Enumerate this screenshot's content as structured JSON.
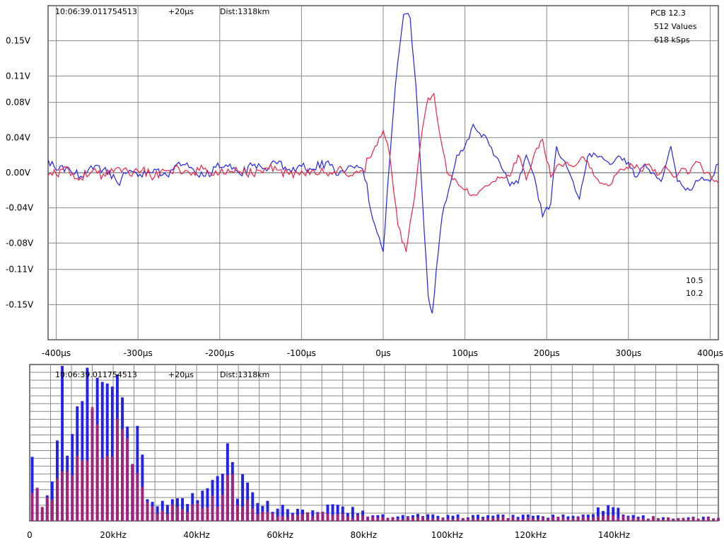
{
  "colors": {
    "blue": "#2222ee",
    "red": "#ee2244",
    "overlap": "#b0246e",
    "grid": "#8a8a8a",
    "zero": "#555555"
  },
  "top": {
    "timestamp": "10:06:39.011754513",
    "offset": "+20µs",
    "distance": "Dist:1318km",
    "station": "PCB 12.3",
    "values": "512 Values",
    "rate": "618 kSps",
    "legend_blue": "10.5",
    "legend_red": "10.2"
  },
  "bottom": {
    "timestamp": "10:06:39.011754513",
    "offset": "+20µs",
    "distance": "Dist:1318km"
  },
  "chart_data": [
    {
      "type": "line",
      "xlim": [
        -410,
        410
      ],
      "ylim": [
        -0.19,
        0.19
      ],
      "x_ticks": [
        -400,
        -300,
        -200,
        -100,
        0,
        100,
        200,
        300,
        400
      ],
      "x_tick_labels": [
        "-400µs",
        "-300µs",
        "-200µs",
        "-100µs",
        "0µs",
        "100µs",
        "200µs",
        "300µs",
        "400µs"
      ],
      "y_ticks": [
        0.15,
        0.11,
        0.08,
        0.04,
        0.0,
        -0.04,
        -0.08,
        -0.11,
        -0.15
      ],
      "y_tick_labels": [
        "0.15V",
        "0.11V",
        "0.08V",
        "0.04V",
        "0.00V",
        "-0.04V",
        "-0.08V",
        "-0.11V",
        "-0.15V"
      ],
      "series": [
        {
          "name": "10.5",
          "color": "blue",
          "x": [
            -410,
            -400,
            -385,
            -370,
            -355,
            -340,
            -325,
            -310,
            -295,
            -280,
            -265,
            -250,
            -235,
            -220,
            -205,
            -190,
            -175,
            -160,
            -145,
            -130,
            -115,
            -100,
            -85,
            -70,
            -55,
            -40,
            -25,
            -10,
            0,
            5,
            15,
            25,
            33,
            40,
            48,
            55,
            60,
            65,
            72,
            80,
            90,
            100,
            110,
            118,
            125,
            135,
            145,
            155,
            165,
            175,
            185,
            195,
            205,
            212,
            220,
            230,
            240,
            250,
            260,
            270,
            280,
            290,
            300,
            310,
            320,
            330,
            340,
            352,
            360,
            370,
            380,
            390,
            400,
            410
          ],
          "y": [
            0.015,
            0.003,
            0.006,
            -0.004,
            0.004,
            0.006,
            -0.012,
            0.003,
            -0.005,
            0.004,
            -0.003,
            0.012,
            0.006,
            -0.004,
            0.006,
            0.007,
            -0.002,
            0.008,
            0.005,
            0.01,
            0.004,
            0.007,
            0.004,
            0.012,
            -0.003,
            0.008,
            0.004,
            -0.06,
            -0.09,
            -0.02,
            0.1,
            0.18,
            0.176,
            0.1,
            -0.03,
            -0.14,
            -0.16,
            -0.11,
            -0.05,
            -0.02,
            0.02,
            0.03,
            0.055,
            0.045,
            0.042,
            0.02,
            0.005,
            -0.015,
            -0.012,
            0.02,
            -0.005,
            -0.05,
            -0.035,
            0.03,
            0.015,
            -0.005,
            -0.03,
            0.018,
            0.02,
            0.015,
            0.01,
            0.018,
            0.012,
            -0.005,
            0.01,
            0.0,
            -0.01,
            0.03,
            -0.01,
            -0.02,
            -0.015,
            -0.005,
            -0.01,
            0.01
          ]
        },
        {
          "name": "10.2",
          "color": "red",
          "x": [
            -410,
            -400,
            -385,
            -370,
            -355,
            -340,
            -325,
            -310,
            -295,
            -280,
            -265,
            -250,
            -235,
            -220,
            -205,
            -190,
            -175,
            -160,
            -145,
            -130,
            -115,
            -100,
            -85,
            -70,
            -55,
            -40,
            -25,
            -10,
            0,
            8,
            18,
            28,
            38,
            48,
            55,
            62,
            70,
            78,
            90,
            100,
            115,
            125,
            135,
            145,
            155,
            165,
            175,
            185,
            195,
            205,
            215,
            225,
            235,
            245,
            255,
            265,
            275,
            285,
            295,
            305,
            315,
            325,
            335,
            345,
            355,
            365,
            375,
            385,
            395,
            405,
            410
          ],
          "y": [
            -0.003,
            -0.002,
            0.004,
            -0.006,
            0.003,
            -0.004,
            0.006,
            -0.003,
            0.003,
            -0.005,
            0.002,
            0.005,
            -0.003,
            0.004,
            0.002,
            0.004,
            0.001,
            -0.002,
            0.005,
            0.003,
            -0.002,
            0.002,
            0.003,
            0.0,
            0.005,
            -0.003,
            0.002,
            0.03,
            0.048,
            0.02,
            -0.06,
            -0.09,
            -0.03,
            0.05,
            0.085,
            0.09,
            0.04,
            0.0,
            -0.01,
            -0.02,
            -0.025,
            -0.015,
            -0.01,
            -0.005,
            -0.004,
            0.02,
            -0.008,
            0.022,
            0.038,
            -0.005,
            0.01,
            0.012,
            0.008,
            0.018,
            0.005,
            -0.012,
            -0.015,
            -0.002,
            0.003,
            0.008,
            0.002,
            0.01,
            -0.003,
            0.008,
            -0.005,
            0.005,
            0.0,
            0.012,
            0.0,
            -0.01,
            -0.012
          ]
        }
      ]
    },
    {
      "type": "bar",
      "xlim": [
        0,
        165
      ],
      "ylim": [
        0,
        1
      ],
      "x_ticks": [
        0,
        20,
        40,
        60,
        80,
        100,
        120,
        140
      ],
      "x_tick_labels": [
        "0",
        "20kHz",
        "40kHz",
        "60kHz",
        "80kHz",
        "100kHz",
        "120kHz",
        "140kHz"
      ],
      "bin_width_khz": 1.2,
      "series": [
        {
          "name": "10.5",
          "color": "blue",
          "peaks": [
            [
              1,
              0.3
            ],
            [
              3,
              0.12
            ],
            [
              6,
              0.25
            ],
            [
              8,
              0.95
            ],
            [
              9,
              0.7
            ],
            [
              10,
              0.98
            ],
            [
              11,
              0.65
            ],
            [
              12,
              0.97
            ],
            [
              13,
              0.95
            ],
            [
              14,
              1.0
            ],
            [
              15,
              0.97
            ],
            [
              16,
              0.85
            ],
            [
              17,
              0.96
            ],
            [
              18,
              0.92
            ],
            [
              19,
              0.8
            ],
            [
              20,
              0.65
            ],
            [
              21,
              0.9
            ],
            [
              22,
              0.78
            ],
            [
              23,
              0.85
            ],
            [
              24,
              0.8
            ],
            [
              25,
              0.55
            ],
            [
              26,
              0.45
            ],
            [
              27,
              0.47
            ],
            [
              28,
              0.22
            ],
            [
              31,
              0.12
            ],
            [
              34,
              0.1
            ],
            [
              37,
              0.12
            ],
            [
              39,
              0.18
            ],
            [
              41,
              0.15
            ],
            [
              43,
              0.22
            ],
            [
              45,
              0.23
            ],
            [
              47,
              0.37
            ],
            [
              48,
              0.38
            ],
            [
              49,
              0.27
            ],
            [
              50,
              0.25
            ],
            [
              52,
              0.22
            ],
            [
              54,
              0.18
            ],
            [
              56,
              0.1
            ],
            [
              60,
              0.08
            ],
            [
              62,
              0.06
            ],
            [
              66,
              0.06
            ],
            [
              68,
              0.1
            ],
            [
              70,
              0.1
            ],
            [
              72,
              0.09
            ],
            [
              74,
              0.09
            ],
            [
              76,
              0.08
            ],
            [
              79,
              0.06
            ],
            [
              85,
              0.03
            ],
            [
              90,
              0.04
            ],
            [
              96,
              0.04
            ],
            [
              104,
              0.03
            ],
            [
              110,
              0.03
            ],
            [
              118,
              0.03
            ],
            [
              125,
              0.03
            ],
            [
              130,
              0.03
            ],
            [
              139,
              0.1
            ],
            [
              145,
              0.03
            ],
            [
              151,
              0.02
            ],
            [
              158,
              0.02
            ],
            [
              163,
              0.02
            ]
          ]
        },
        {
          "name": "10.2",
          "color": "red",
          "peaks": [
            [
              1,
              0.28
            ],
            [
              3,
              0.1
            ],
            [
              6,
              0.15
            ],
            [
              8,
              0.42
            ],
            [
              9,
              0.45
            ],
            [
              10,
              0.44
            ],
            [
              11,
              0.4
            ],
            [
              12,
              0.55
            ],
            [
              13,
              0.52
            ],
            [
              14,
              0.58
            ],
            [
              15,
              0.54
            ],
            [
              16,
              0.48
            ],
            [
              17,
              0.42
            ],
            [
              18,
              0.5
            ],
            [
              19,
              0.46
            ],
            [
              20,
              0.42
            ],
            [
              21,
              0.5
            ],
            [
              22,
              0.48
            ],
            [
              23,
              0.44
            ],
            [
              24,
              0.4
            ],
            [
              25,
              0.36
            ],
            [
              26,
              0.3
            ],
            [
              27,
              0.22
            ],
            [
              28,
              0.12
            ],
            [
              31,
              0.06
            ],
            [
              34,
              0.08
            ],
            [
              37,
              0.06
            ],
            [
              39,
              0.1
            ],
            [
              41,
              0.1
            ],
            [
              43,
              0.13
            ],
            [
              45,
              0.14
            ],
            [
              47,
              0.34
            ],
            [
              48,
              0.32
            ],
            [
              49,
              0.18
            ],
            [
              50,
              0.15
            ],
            [
              52,
              0.12
            ],
            [
              54,
              0.08
            ],
            [
              56,
              0.05
            ],
            [
              60,
              0.04
            ],
            [
              62,
              0.03
            ],
            [
              66,
              0.04
            ],
            [
              68,
              0.05
            ],
            [
              70,
              0.05
            ],
            [
              72,
              0.04
            ],
            [
              74,
              0.04
            ],
            [
              76,
              0.03
            ],
            [
              79,
              0.03
            ],
            [
              85,
              0.02
            ],
            [
              90,
              0.02
            ],
            [
              96,
              0.02
            ],
            [
              104,
              0.02
            ],
            [
              110,
              0.02
            ],
            [
              118,
              0.02
            ],
            [
              125,
              0.02
            ],
            [
              130,
              0.02
            ],
            [
              139,
              0.03
            ],
            [
              145,
              0.02
            ],
            [
              151,
              0.02
            ],
            [
              158,
              0.02
            ],
            [
              163,
              0.02
            ]
          ]
        }
      ]
    }
  ]
}
